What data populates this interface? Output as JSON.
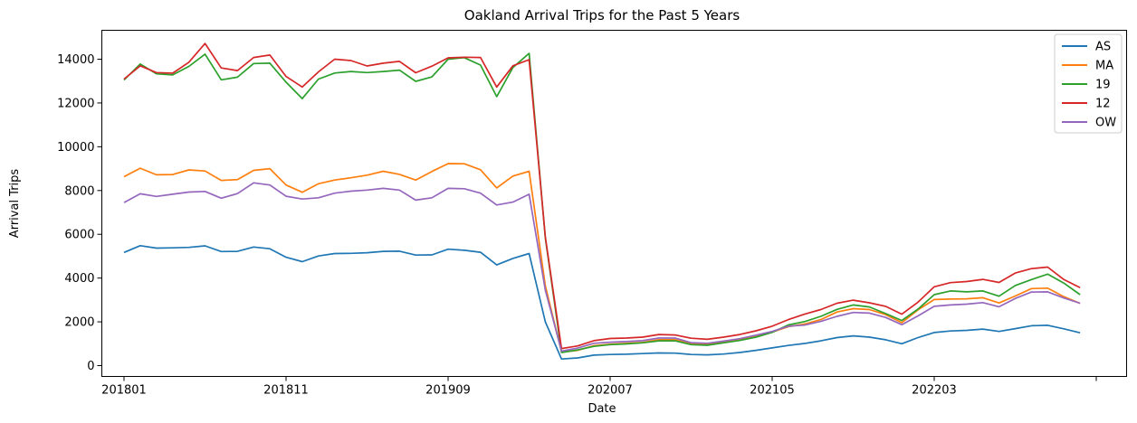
{
  "chart_data": {
    "type": "line",
    "title": "Oakland Arrival Trips for the Past 5 Years",
    "xlabel": "Date",
    "ylabel": "Arrival Trips",
    "ylim": [
      -400,
      15100
    ],
    "yticks": [
      0,
      2000,
      4000,
      6000,
      8000,
      10000,
      12000,
      14000
    ],
    "xtick_labels": [
      "201801",
      "201811",
      "201909",
      "202007",
      "202105",
      "202203",
      ""
    ],
    "xtick_index": [
      0,
      10,
      20,
      30,
      40,
      50,
      60
    ],
    "legend_position": "top-right",
    "grid": false,
    "x": [
      "201801",
      "201802",
      "201803",
      "201804",
      "201805",
      "201806",
      "201807",
      "201808",
      "201809",
      "201810",
      "201811",
      "201812",
      "201901",
      "201902",
      "201903",
      "201904",
      "201905",
      "201906",
      "201907",
      "201908",
      "201909",
      "201910",
      "201911",
      "201912",
      "202001",
      "202002",
      "202003",
      "202004",
      "202005",
      "202006",
      "202007",
      "202008",
      "202009",
      "202010",
      "202011",
      "202012",
      "202101",
      "202102",
      "202103",
      "202104",
      "202105",
      "202106",
      "202107",
      "202108",
      "202109",
      "202110",
      "202111",
      "202112",
      "202201",
      "202202",
      "202203",
      "202204",
      "202205",
      "202206",
      "202207",
      "202208",
      "202209",
      "202210",
      "202211",
      "202212"
    ],
    "series": [
      {
        "name": "AS",
        "color": "#1f77b4",
        "values": [
          5170,
          5480,
          5370,
          5380,
          5400,
          5470,
          5210,
          5220,
          5420,
          5340,
          4950,
          4750,
          5010,
          5120,
          5130,
          5160,
          5220,
          5230,
          5050,
          5060,
          5320,
          5270,
          5180,
          4600,
          4900,
          5120,
          2000,
          300,
          350,
          480,
          510,
          520,
          550,
          580,
          570,
          510,
          490,
          530,
          600,
          700,
          810,
          920,
          1010,
          1130,
          1280,
          1360,
          1300,
          1180,
          1000,
          1280,
          1510,
          1580,
          1610,
          1670,
          1560,
          1690,
          1820,
          1840,
          1680,
          1500
        ]
      },
      {
        "name": "MA",
        "color": "#ff7f0e",
        "values": [
          8630,
          9020,
          8720,
          8730,
          8940,
          8890,
          8460,
          8500,
          8920,
          9000,
          8250,
          7920,
          8310,
          8480,
          8580,
          8700,
          8880,
          8740,
          8480,
          8870,
          9230,
          9220,
          8950,
          8120,
          8660,
          8880,
          3650,
          610,
          700,
          910,
          980,
          1020,
          1060,
          1180,
          1180,
          1000,
          980,
          1080,
          1180,
          1320,
          1530,
          1780,
          1900,
          2100,
          2450,
          2600,
          2560,
          2330,
          1960,
          2550,
          3020,
          3040,
          3050,
          3100,
          2860,
          3180,
          3520,
          3540,
          3150,
          2840
        ]
      },
      {
        "name": "19",
        "color": "#2ca02c",
        "values": [
          13050,
          13780,
          13330,
          13280,
          13670,
          14230,
          13060,
          13180,
          13800,
          13820,
          12950,
          12200,
          13090,
          13370,
          13440,
          13390,
          13440,
          13500,
          12990,
          13190,
          14000,
          14070,
          13730,
          12290,
          13620,
          14270,
          5830,
          600,
          720,
          880,
          960,
          990,
          1040,
          1130,
          1130,
          960,
          930,
          1040,
          1150,
          1300,
          1520,
          1860,
          2010,
          2250,
          2570,
          2770,
          2680,
          2380,
          2060,
          2580,
          3240,
          3410,
          3370,
          3410,
          3170,
          3660,
          3930,
          4180,
          3770,
          3240
        ]
      },
      {
        "name": "12",
        "color": "#d62728",
        "values": [
          13090,
          13700,
          13390,
          13360,
          13860,
          14720,
          13600,
          13480,
          14080,
          14190,
          13210,
          12730,
          13420,
          14000,
          13940,
          13690,
          13820,
          13900,
          13380,
          13680,
          14060,
          14090,
          14080,
          12730,
          13700,
          13980,
          5880,
          780,
          900,
          1140,
          1240,
          1260,
          1300,
          1420,
          1400,
          1250,
          1200,
          1300,
          1420,
          1590,
          1800,
          2100,
          2350,
          2560,
          2850,
          2990,
          2870,
          2710,
          2350,
          2900,
          3600,
          3790,
          3840,
          3940,
          3800,
          4230,
          4430,
          4500,
          3930,
          3560
        ]
      },
      {
        "name": "OW",
        "color": "#9467bd",
        "values": [
          7450,
          7850,
          7730,
          7830,
          7930,
          7960,
          7650,
          7860,
          8350,
          8250,
          7740,
          7610,
          7670,
          7880,
          7970,
          8020,
          8100,
          8020,
          7560,
          7670,
          8100,
          8080,
          7880,
          7340,
          7470,
          7830,
          3450,
          660,
          800,
          1020,
          1070,
          1100,
          1140,
          1260,
          1260,
          1050,
          1020,
          1120,
          1230,
          1390,
          1560,
          1800,
          1850,
          2020,
          2250,
          2430,
          2400,
          2200,
          1870,
          2270,
          2710,
          2770,
          2810,
          2880,
          2690,
          3070,
          3360,
          3370,
          3090,
          2850
        ]
      }
    ]
  }
}
